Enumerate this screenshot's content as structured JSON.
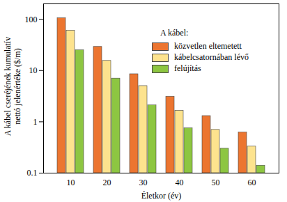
{
  "chart_data": {
    "type": "bar",
    "x_label": "Életkor (év)",
    "y_label": "A kábel cseréjének kumulatív\nnettó jelenértéke ($/m)",
    "legend_title": "A kábel:",
    "categories": [
      10,
      20,
      30,
      40,
      50,
      60
    ],
    "series": [
      {
        "name": "közvetlen eltemetett",
        "color": "#ec7530",
        "values": [
          105,
          29,
          8.5,
          3.1,
          1.3,
          0.62
        ]
      },
      {
        "name": "kábelcsatornában lévő",
        "color": "#fde38e",
        "values": [
          60,
          15.5,
          5,
          1.65,
          0.7,
          0.33
        ]
      },
      {
        "name": "felújítás",
        "color": "#8dc641",
        "values": [
          25,
          7,
          2.1,
          0.75,
          0.3,
          0.14
        ]
      }
    ],
    "ylim": [
      0.1,
      200
    ],
    "yticks": [
      0.1,
      1,
      10,
      100
    ],
    "log": "y",
    "grid": false,
    "legend": "upper right"
  }
}
